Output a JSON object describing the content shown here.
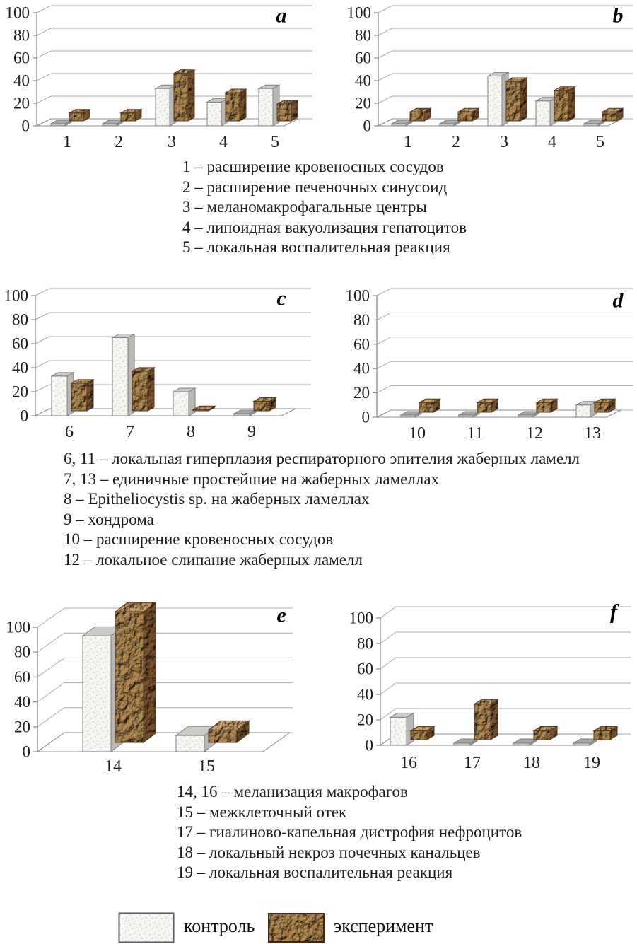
{
  "legend": {
    "control_label": "контроль",
    "experiment_label": "эксперимент"
  },
  "colors": {
    "grid": "#ababab",
    "axis": "#8c8c8c",
    "text": "#1d1d1d",
    "control_fill": "#f7f6f3",
    "control_top": "#cccbc8",
    "control_side": "#b9b8b5",
    "control_stroke": "#7f7f7f",
    "experiment_front": "#9c7848",
    "experiment_top": "#b68f5e",
    "experiment_side": "#6b4a2a",
    "experiment_stroke": "#533920"
  },
  "chart_data": [
    {
      "id": "a",
      "type": "bar",
      "panel_label": "a",
      "categories": [
        "1",
        "2",
        "3",
        "4",
        "5"
      ],
      "series": [
        {
          "name": "контроль",
          "values": [
            0,
            0,
            33,
            21,
            33
          ]
        },
        {
          "name": "эксперимент",
          "values": [
            7,
            7,
            42,
            25,
            15
          ]
        }
      ],
      "ylim": [
        0,
        100
      ],
      "y_ticks": [
        0,
        20,
        40,
        60,
        80,
        100
      ]
    },
    {
      "id": "b",
      "type": "bar",
      "panel_label": "b",
      "categories": [
        "1",
        "2",
        "3",
        "4",
        "5"
      ],
      "series": [
        {
          "name": "контроль",
          "values": [
            0,
            0,
            44,
            22,
            0
          ]
        },
        {
          "name": "эксперимент",
          "values": [
            8,
            8,
            35,
            27,
            8
          ]
        }
      ],
      "ylim": [
        0,
        100
      ],
      "y_ticks": [
        0,
        20,
        40,
        60,
        80,
        100
      ]
    },
    {
      "id": "c",
      "type": "bar",
      "panel_label": "c",
      "categories": [
        "6",
        "7",
        "8",
        "9"
      ],
      "series": [
        {
          "name": "контроль",
          "values": [
            33,
            65,
            20,
            0
          ]
        },
        {
          "name": "эксперимент",
          "values": [
            23,
            33,
            1,
            8
          ]
        }
      ],
      "ylim": [
        0,
        100
      ],
      "y_ticks": [
        0,
        20,
        40,
        60,
        80,
        100
      ]
    },
    {
      "id": "d",
      "type": "bar",
      "panel_label": "d",
      "categories": [
        "10",
        "11",
        "12",
        "13"
      ],
      "series": [
        {
          "name": "контроль",
          "values": [
            0,
            0,
            0,
            10
          ]
        },
        {
          "name": "эксперимент",
          "values": [
            8,
            8,
            8,
            8
          ]
        }
      ],
      "ylim": [
        0,
        100
      ],
      "y_ticks": [
        0,
        20,
        40,
        60,
        80,
        100
      ]
    },
    {
      "id": "e",
      "type": "bar",
      "panel_label": "e",
      "categories": [
        "14",
        "15"
      ],
      "series": [
        {
          "name": "контроль",
          "values": [
            93,
            13
          ]
        },
        {
          "name": "эксперимент",
          "values": [
            105,
            10
          ]
        }
      ],
      "ylim": [
        0,
        100
      ],
      "y_ticks": [
        0,
        20,
        40,
        60,
        80,
        100
      ]
    },
    {
      "id": "f",
      "type": "bar",
      "panel_label": "f",
      "categories": [
        "16",
        "17",
        "18",
        "19"
      ],
      "series": [
        {
          "name": "контроль",
          "values": [
            22,
            0,
            0,
            0
          ]
        },
        {
          "name": "эксперимент",
          "values": [
            7,
            28,
            7,
            7
          ]
        }
      ],
      "ylim": [
        0,
        100
      ],
      "y_ticks": [
        0,
        20,
        40,
        60,
        80,
        100
      ]
    }
  ],
  "notes": {
    "block1": [
      "1 – расширение кровеносных сосудов",
      "2 – расширение печеночных синусоид",
      "3 – меланомакрофагальные центры",
      "4 – липоидная вакуолизация гепатоцитов",
      "5 – локальная воспалительная реакция"
    ],
    "block2": [
      "6, 11 – локальная гиперплазия респираторного эпителия жаберных ламелл",
      "7, 13 – единичные простейшие на жаберных ламеллах",
      "8 – Epitheliocystis sp. на жаберных ламеллах",
      "9 – хондрома",
      "10 – расширение кровеносных сосудов",
      "12 – локальное слипание жаберных ламелл"
    ],
    "block3": [
      "14, 16 – меланизация макрофагов",
      "15 – межклеточный отек",
      "17 – гиалиново-капельная дистрофия нефроцитов",
      "18 – локальный некроз почечных канальцев",
      "19 – локальная воспалительная реакция"
    ]
  }
}
